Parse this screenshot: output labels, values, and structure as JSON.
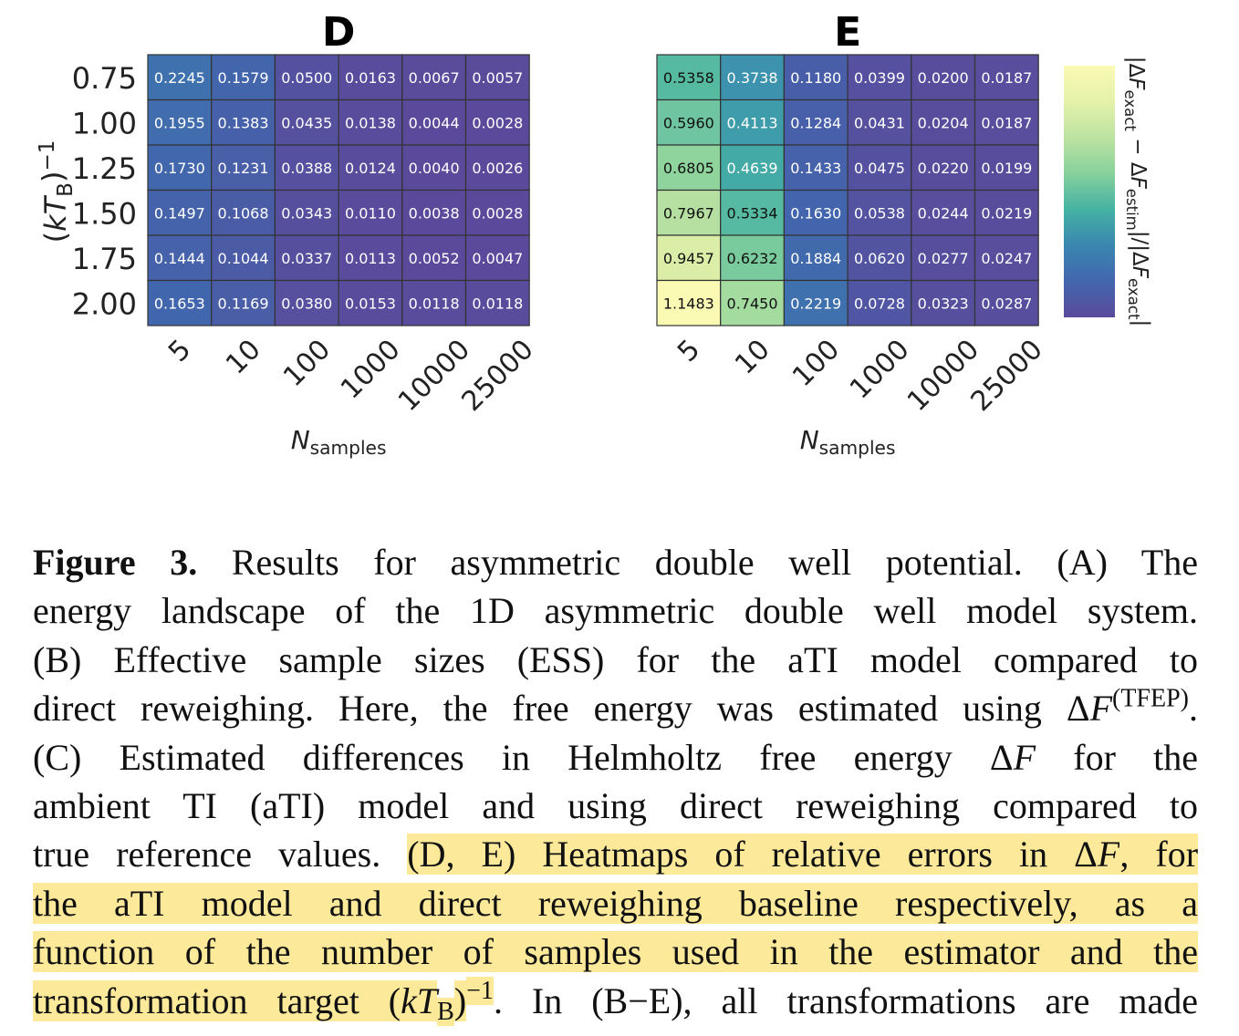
{
  "chart_data": [
    {
      "type": "heatmap",
      "title": "D",
      "x_categories": [
        "5",
        "10",
        "100",
        "1000",
        "10000",
        "25000"
      ],
      "y_categories": [
        "0.75",
        "1.00",
        "1.25",
        "1.50",
        "1.75",
        "2.00"
      ],
      "x_label": [
        {
          "text": "N",
          "style": "italic"
        },
        {
          "text": "samples",
          "style": "sub"
        }
      ],
      "y_label": [
        {
          "text": "("
        },
        {
          "text": "kT",
          "style": "italic"
        },
        {
          "text": "B",
          "style": "sub"
        },
        {
          "text": ")"
        },
        {
          "text": "−1",
          "style": "sup"
        }
      ],
      "values": [
        [
          0.2245,
          0.1579,
          0.05,
          0.0163,
          0.0067,
          0.0057
        ],
        [
          0.1955,
          0.1383,
          0.0435,
          0.0138,
          0.0044,
          0.0028
        ],
        [
          0.173,
          0.1231,
          0.0388,
          0.0124,
          0.004,
          0.0026
        ],
        [
          0.1497,
          0.1068,
          0.0343,
          0.011,
          0.0038,
          0.0028
        ],
        [
          0.1444,
          0.1044,
          0.0337,
          0.0113,
          0.0052,
          0.0047
        ],
        [
          0.1653,
          0.1169,
          0.038,
          0.0153,
          0.0118,
          0.0118
        ]
      ],
      "value_labels": [
        [
          "0.2245",
          "0.1579",
          "0.0500",
          "0.0163",
          "0.0067",
          "0.0057"
        ],
        [
          "0.1955",
          "0.1383",
          "0.0435",
          "0.0138",
          "0.0044",
          "0.0028"
        ],
        [
          "0.1730",
          "0.1231",
          "0.0388",
          "0.0124",
          "0.0040",
          "0.0026"
        ],
        [
          "0.1497",
          "0.1068",
          "0.0343",
          "0.0110",
          "0.0038",
          "0.0028"
        ],
        [
          "0.1444",
          "0.1044",
          "0.0337",
          "0.0113",
          "0.0052",
          "0.0047"
        ],
        [
          "0.1653",
          "0.1169",
          "0.0380",
          "0.0153",
          "0.0118",
          "0.0118"
        ]
      ],
      "colormap": [
        "#5b4a9b",
        "#4266ad",
        "#3a86b0",
        "#45b2a3",
        "#87d19c",
        "#bde3a2",
        "#e4f1a9",
        "#fbfab4"
      ]
    },
    {
      "type": "heatmap",
      "title": "E",
      "x_categories": [
        "5",
        "10",
        "100",
        "1000",
        "10000",
        "25000"
      ],
      "x_label": [
        {
          "text": "N",
          "style": "italic"
        },
        {
          "text": "samples",
          "style": "sub"
        }
      ],
      "values": [
        [
          0.5358,
          0.3738,
          0.118,
          0.0399,
          0.02,
          0.0187
        ],
        [
          0.596,
          0.4113,
          0.1284,
          0.0431,
          0.0204,
          0.0187
        ],
        [
          0.6805,
          0.4639,
          0.1433,
          0.0475,
          0.022,
          0.0199
        ],
        [
          0.7967,
          0.5334,
          0.163,
          0.0538,
          0.0244,
          0.0219
        ],
        [
          0.9457,
          0.6232,
          0.1884,
          0.062,
          0.0277,
          0.0247
        ],
        [
          1.1483,
          0.745,
          0.2219,
          0.0728,
          0.0323,
          0.0287
        ]
      ],
      "value_labels": [
        [
          "0.5358",
          "0.3738",
          "0.1180",
          "0.0399",
          "0.0200",
          "0.0187"
        ],
        [
          "0.5960",
          "0.4113",
          "0.1284",
          "0.0431",
          "0.0204",
          "0.0187"
        ],
        [
          "0.6805",
          "0.4639",
          "0.1433",
          "0.0475",
          "0.0220",
          "0.0199"
        ],
        [
          "0.7967",
          "0.5334",
          "0.1630",
          "0.0538",
          "0.0244",
          "0.0219"
        ],
        [
          "0.9457",
          "0.6232",
          "0.1884",
          "0.0620",
          "0.0277",
          "0.0247"
        ],
        [
          "1.1483",
          "0.7450",
          "0.2219",
          "0.0728",
          "0.0323",
          "0.0287"
        ]
      ],
      "colormap": [
        "#5b4a9b",
        "#4266ad",
        "#3a86b0",
        "#45b2a3",
        "#87d19c",
        "#bde3a2",
        "#e4f1a9",
        "#fbfab4"
      ],
      "colorbar": true,
      "colorbar_label": [
        {
          "text": "|Δ"
        },
        {
          "text": "F",
          "style": "italic"
        },
        {
          "text": "exact",
          "style": "sub"
        },
        {
          "text": " − Δ"
        },
        {
          "text": "F",
          "style": "italic"
        },
        {
          "text": "estim",
          "style": "sub"
        },
        {
          "text": "|/|Δ"
        },
        {
          "text": "F",
          "style": "italic"
        },
        {
          "text": "exact",
          "style": "sub"
        },
        {
          "text": "|"
        }
      ]
    }
  ],
  "caption": {
    "lines": [
      [
        {
          "text": "Figure 3.",
          "style": "bold"
        },
        {
          "text": " Results for asymmetric double well potential. (A) The"
        }
      ],
      [
        {
          "text": "energy landscape of the 1D asymmetric double well model system."
        }
      ],
      [
        {
          "text": "(B) Effective sample sizes (ESS) for the aTI model compared to"
        }
      ],
      [
        {
          "text": "direct reweighing. Here, the free energy was estimated using Δ"
        },
        {
          "text": "F",
          "style": "italic"
        },
        {
          "text": "(TFEP)",
          "style": "sup"
        },
        {
          "text": "."
        }
      ],
      [
        {
          "text": "(C) Estimated differences in Helmholtz free energy Δ"
        },
        {
          "text": "F",
          "style": "italic"
        },
        {
          "text": " for the"
        }
      ],
      [
        {
          "text": "ambient TI (aTI) model and using direct reweighing compared to"
        }
      ],
      [
        {
          "text": "true reference values. "
        },
        {
          "text": "(D, E) Heatmaps of relative errors in Δ",
          "style": "hl"
        },
        {
          "text": "F",
          "style": "hl italic"
        },
        {
          "text": ", for",
          "style": "hl"
        }
      ],
      [
        {
          "text": "the aTI model and direct reweighing baseline respectively, as a",
          "style": "hl"
        }
      ],
      [
        {
          "text": "function of the number of samples used in the estimator and the",
          "style": "hl"
        }
      ],
      [
        {
          "text": "transformation target (",
          "style": "hl"
        },
        {
          "text": "kT",
          "style": "hl italic"
        },
        {
          "text": "B",
          "style": "hl sub"
        },
        {
          "text": ")",
          "style": "hl"
        },
        {
          "text": "−1",
          "style": "hl sup"
        },
        {
          "text": ". In (B−E), all transformations are made"
        }
      ]
    ]
  }
}
